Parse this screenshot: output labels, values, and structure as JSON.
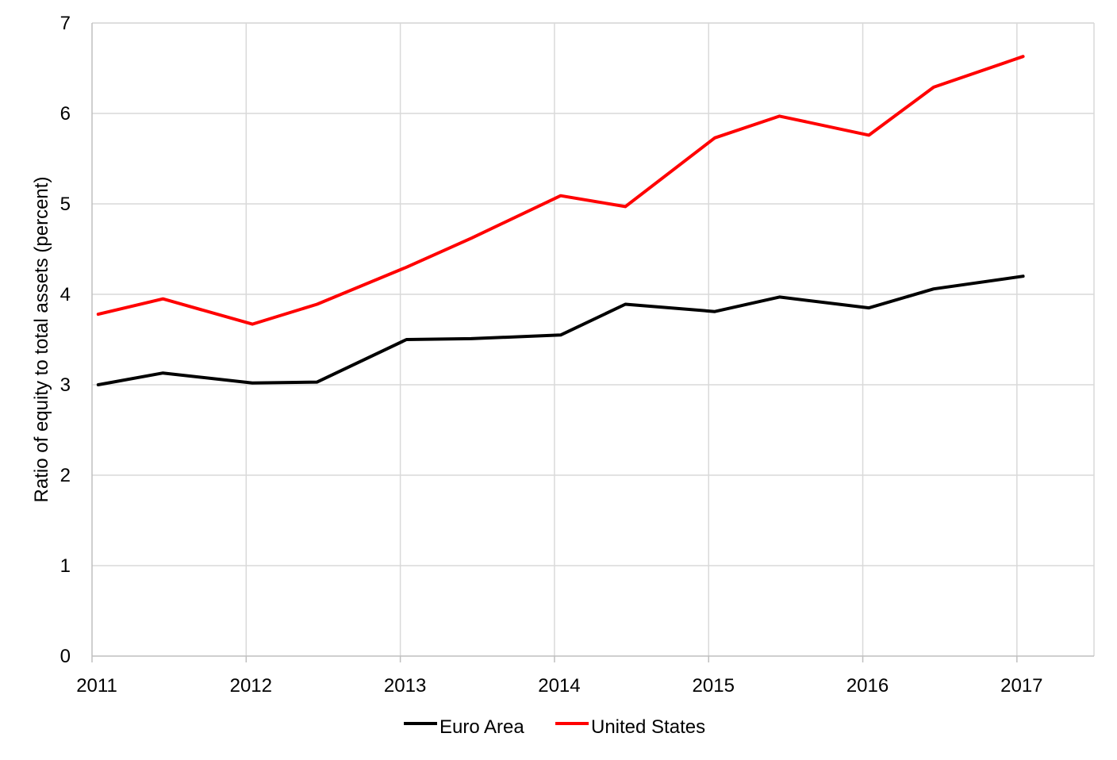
{
  "chart_data": {
    "type": "line",
    "title": "",
    "xlabel": "",
    "ylabel": "Ratio of equity to total assets (percent)",
    "xlim": [
      2011,
      2017.5
    ],
    "ylim": [
      0,
      7
    ],
    "x_ticks": [
      "2011",
      "2012",
      "2013",
      "2014",
      "2015",
      "2016",
      "2017"
    ],
    "y_ticks": [
      "0",
      "1",
      "2",
      "3",
      "4",
      "5",
      "6",
      "7"
    ],
    "grid": true,
    "legend_position": "bottom",
    "series": [
      {
        "name": "Euro Area",
        "color": "#000000",
        "x": [
          2011.04,
          2011.46,
          2012.04,
          2012.46,
          2013.04,
          2013.46,
          2014.04,
          2014.46,
          2015.04,
          2015.46,
          2016.04,
          2016.46,
          2017.04
        ],
        "y": [
          3.0,
          3.13,
          3.02,
          3.03,
          3.5,
          3.51,
          3.55,
          3.89,
          3.81,
          3.97,
          3.85,
          4.06,
          4.2
        ]
      },
      {
        "name": "United States",
        "color": "#ff0000",
        "x": [
          2011.04,
          2011.46,
          2012.04,
          2012.46,
          2013.04,
          2013.46,
          2014.04,
          2014.46,
          2015.04,
          2015.46,
          2016.04,
          2016.46,
          2017.04
        ],
        "y": [
          3.78,
          3.95,
          3.67,
          3.89,
          4.3,
          4.62,
          5.09,
          4.97,
          5.73,
          5.97,
          5.76,
          6.29,
          6.63
        ]
      }
    ]
  }
}
